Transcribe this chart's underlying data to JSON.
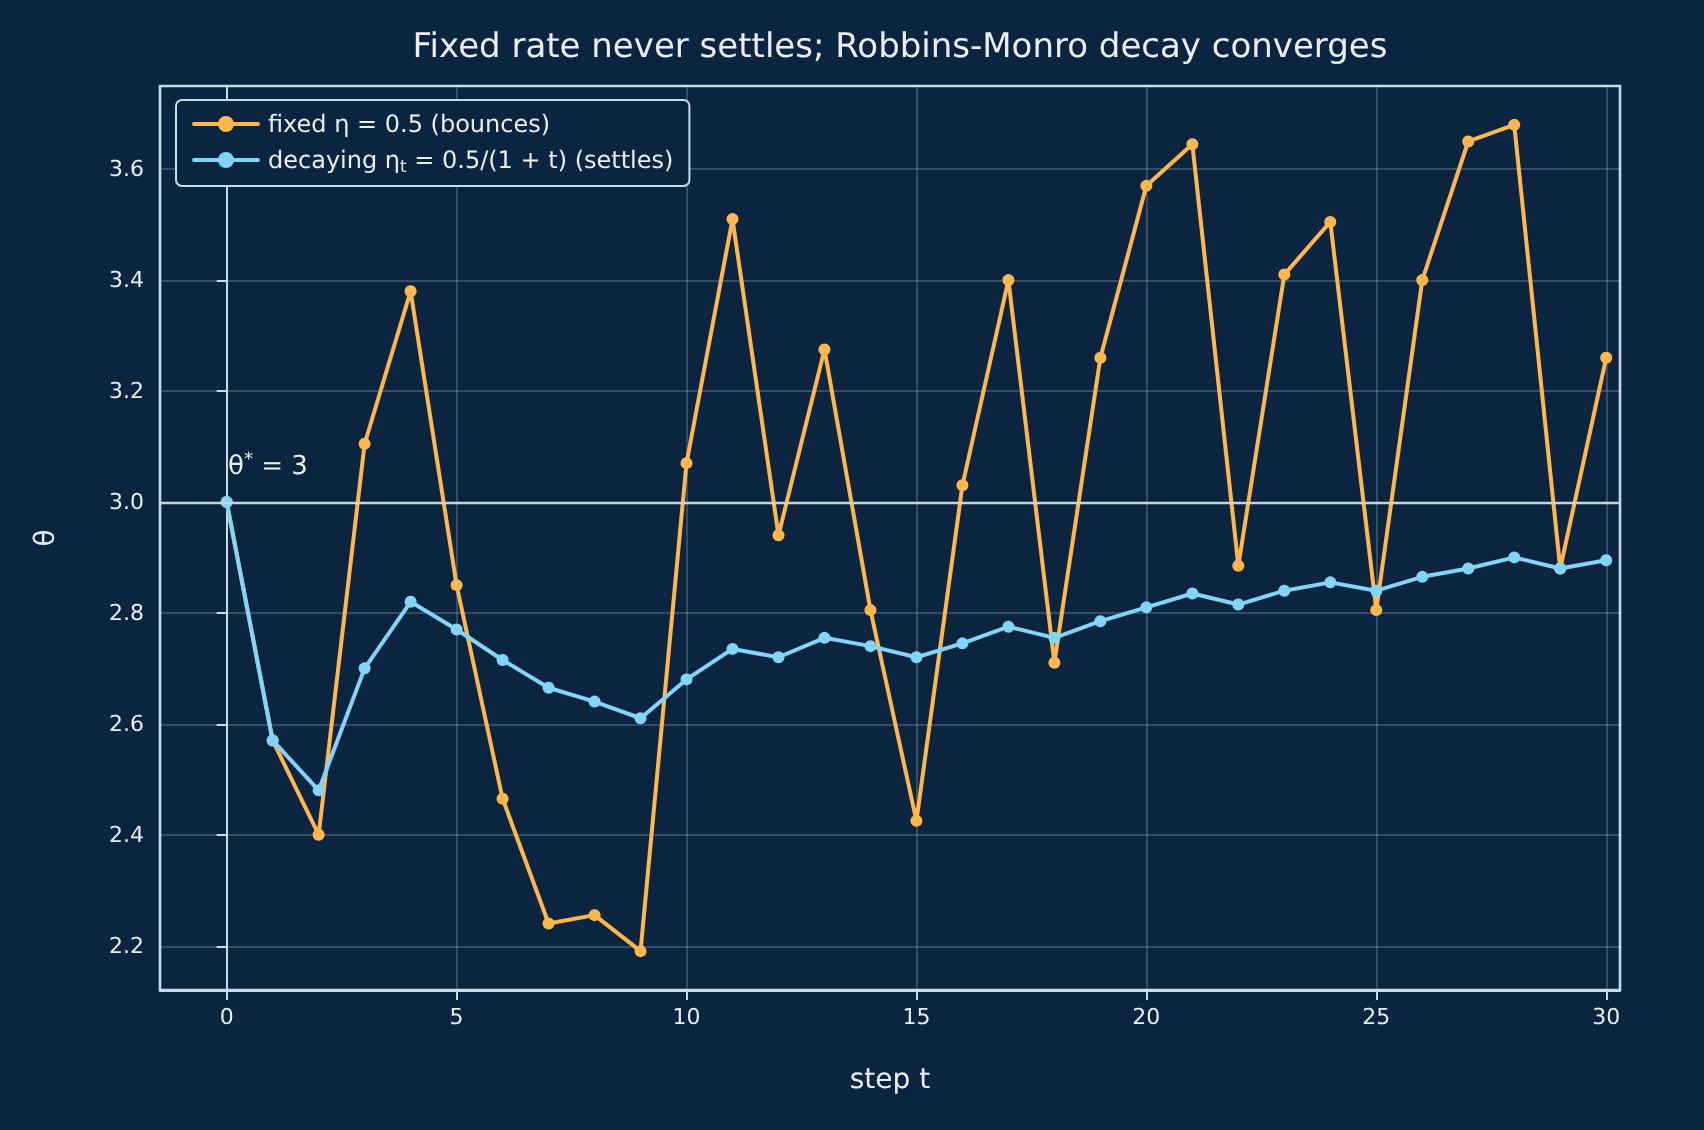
{
  "chart_data": {
    "type": "line",
    "title": "Fixed rate never settles; Robbins-Monro decay converges",
    "xlabel": "step t",
    "ylabel": "θ",
    "x": [
      0,
      1,
      2,
      3,
      4,
      5,
      6,
      7,
      8,
      9,
      10,
      11,
      12,
      13,
      14,
      15,
      16,
      17,
      18,
      19,
      20,
      21,
      22,
      23,
      24,
      25,
      26,
      27,
      28,
      29,
      30
    ],
    "series": [
      {
        "name": "fixed η = 0.5 (bounces)",
        "color": "#ffb74d",
        "values": [
          3.0,
          2.57,
          2.4,
          3.105,
          3.38,
          2.85,
          2.465,
          2.24,
          2.255,
          2.19,
          3.07,
          3.51,
          2.94,
          3.275,
          2.805,
          2.425,
          3.03,
          3.4,
          2.71,
          3.26,
          3.57,
          3.645,
          2.885,
          3.41,
          3.505,
          2.805,
          3.4,
          3.65,
          3.68,
          2.88,
          3.26
        ]
      },
      {
        "name": "decaying η$_{t}$ = 0.5/(1 + t) (settles)",
        "color": "#81d4fa",
        "values": [
          3.0,
          2.57,
          2.48,
          2.7,
          2.82,
          2.77,
          2.715,
          2.665,
          2.64,
          2.61,
          2.68,
          2.735,
          2.72,
          2.755,
          2.74,
          2.72,
          2.745,
          2.775,
          2.755,
          2.785,
          2.81,
          2.835,
          2.815,
          2.84,
          2.855,
          2.84,
          2.865,
          2.88,
          2.9,
          2.88,
          2.895
        ]
      }
    ],
    "xlim": [
      -1.45,
      30.3
    ],
    "xticks": [
      0,
      5,
      10,
      15,
      20,
      25,
      30
    ],
    "ylim": [
      2.12,
      3.75
    ],
    "yticks": [
      {
        "value": 2.2,
        "label": "2.2"
      },
      {
        "value": 2.4,
        "label": "2.4"
      },
      {
        "value": 2.6,
        "label": "2.6"
      },
      {
        "value": 2.8,
        "label": "2.8"
      },
      {
        "value": 3,
        "label": "3.0"
      },
      {
        "value": 3.2,
        "label": "3.2"
      },
      {
        "value": 3.4,
        "label": "3.4"
      },
      {
        "value": 3.6,
        "label": "3.6"
      }
    ],
    "ref_lines": [
      {
        "axis": "y",
        "value": 3,
        "label": "θ$^{*}$ = 3",
        "color": "#c8d3dc"
      }
    ],
    "grid": true,
    "legend": "top left",
    "marker": "circle",
    "line_style": "solid"
  }
}
